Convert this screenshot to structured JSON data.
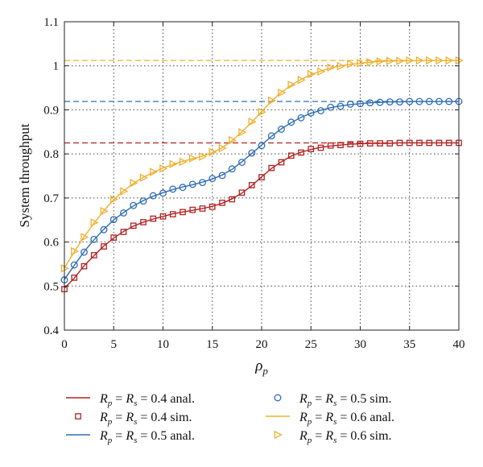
{
  "chart_data": {
    "type": "line",
    "title": "",
    "xlabel": "ρ",
    "xlabel_sub": "p",
    "ylabel": "System throughput",
    "xlim": [
      0,
      40
    ],
    "ylim": [
      0.4,
      1.1
    ],
    "x_ticks": [
      "0",
      "5",
      "10",
      "15",
      "20",
      "25",
      "30",
      "35",
      "40"
    ],
    "y_ticks": [
      "0.4",
      "0.5",
      "0.6",
      "0.7",
      "0.8",
      "0.9",
      "1",
      "1.1"
    ],
    "grid": true,
    "legend_position": "below",
    "x": [
      0,
      1,
      2,
      3,
      4,
      5,
      6,
      7,
      8,
      9,
      10,
      11,
      12,
      13,
      14,
      15,
      16,
      17,
      18,
      19,
      20,
      21,
      22,
      23,
      24,
      25,
      26,
      27,
      28,
      29,
      30,
      31,
      32,
      33,
      34,
      35,
      36,
      37,
      38,
      39,
      40
    ],
    "series": [
      {
        "name": "R_p = R_s = 0.4 anal.",
        "legend_text": "= 0.4 anal.",
        "color": "#b22222",
        "style": "line",
        "values": [
          0.495,
          0.518,
          0.546,
          0.569,
          0.591,
          0.609,
          0.624,
          0.636,
          0.645,
          0.652,
          0.658,
          0.664,
          0.668,
          0.672,
          0.676,
          0.681,
          0.688,
          0.698,
          0.711,
          0.728,
          0.748,
          0.767,
          0.782,
          0.795,
          0.804,
          0.81,
          0.815,
          0.818,
          0.82,
          0.822,
          0.823,
          0.824,
          0.824,
          0.824,
          0.825,
          0.825,
          0.825,
          0.825,
          0.825,
          0.825,
          0.825
        ]
      },
      {
        "name": "R_p = R_s = 0.4 sim.",
        "legend_text": "= 0.4 sim.",
        "color": "#b22222",
        "style": "marker-square",
        "values": [
          0.493,
          0.519,
          0.545,
          0.57,
          0.59,
          0.61,
          0.623,
          0.637,
          0.645,
          0.653,
          0.658,
          0.663,
          0.668,
          0.673,
          0.676,
          0.68,
          0.689,
          0.697,
          0.712,
          0.729,
          0.747,
          0.768,
          0.781,
          0.796,
          0.803,
          0.811,
          0.814,
          0.819,
          0.82,
          0.822,
          0.823,
          0.824,
          0.824,
          0.824,
          0.825,
          0.825,
          0.825,
          0.825,
          0.825,
          0.825,
          0.825
        ]
      },
      {
        "name": "R_p = R_s = 0.5 anal.",
        "legend_text": "= 0.5 anal.",
        "color": "#2e6db4",
        "style": "line",
        "values": [
          0.515,
          0.547,
          0.578,
          0.605,
          0.629,
          0.65,
          0.667,
          0.682,
          0.694,
          0.704,
          0.712,
          0.719,
          0.725,
          0.73,
          0.736,
          0.743,
          0.752,
          0.765,
          0.782,
          0.801,
          0.82,
          0.84,
          0.857,
          0.871,
          0.883,
          0.892,
          0.899,
          0.905,
          0.909,
          0.912,
          0.914,
          0.916,
          0.917,
          0.918,
          0.918,
          0.919,
          0.919,
          0.919,
          0.919,
          0.919,
          0.919
        ]
      },
      {
        "name": "R_p = R_s = 0.5 sim.",
        "legend_text": "= 0.5 sim.",
        "color": "#2e6db4",
        "style": "marker-circle",
        "values": [
          0.514,
          0.548,
          0.577,
          0.606,
          0.628,
          0.651,
          0.666,
          0.683,
          0.693,
          0.705,
          0.711,
          0.72,
          0.724,
          0.731,
          0.735,
          0.744,
          0.751,
          0.766,
          0.781,
          0.802,
          0.819,
          0.841,
          0.856,
          0.872,
          0.882,
          0.893,
          0.898,
          0.906,
          0.908,
          0.913,
          0.914,
          0.916,
          0.917,
          0.918,
          0.918,
          0.919,
          0.919,
          0.919,
          0.919,
          0.919,
          0.919
        ]
      },
      {
        "name": "R_p = R_s = 0.6 anal.",
        "legend_text": "= 0.6 anal.",
        "color": "#f0b030",
        "style": "line",
        "values": [
          0.541,
          0.578,
          0.612,
          0.643,
          0.671,
          0.696,
          0.716,
          0.733,
          0.747,
          0.758,
          0.768,
          0.776,
          0.783,
          0.789,
          0.795,
          0.803,
          0.814,
          0.83,
          0.85,
          0.872,
          0.896,
          0.92,
          0.94,
          0.956,
          0.969,
          0.98,
          0.988,
          0.995,
          1.0,
          1.003,
          1.006,
          1.008,
          1.01,
          1.011,
          1.011,
          1.012,
          1.012,
          1.012,
          1.012,
          1.012,
          1.012
        ]
      },
      {
        "name": "R_p = R_s = 0.6 sim.",
        "legend_text": "= 0.6 sim.",
        "color": "#f0b030",
        "style": "marker-triangle",
        "values": [
          0.54,
          0.579,
          0.611,
          0.644,
          0.67,
          0.697,
          0.715,
          0.734,
          0.746,
          0.759,
          0.767,
          0.777,
          0.782,
          0.79,
          0.794,
          0.804,
          0.813,
          0.831,
          0.849,
          0.873,
          0.895,
          0.921,
          0.939,
          0.957,
          0.968,
          0.981,
          0.987,
          0.996,
          0.999,
          1.004,
          1.006,
          1.008,
          1.01,
          1.011,
          1.011,
          1.012,
          1.012,
          1.012,
          1.012,
          1.012,
          1.012
        ]
      }
    ],
    "asymptotes": [
      {
        "value": 0.825,
        "color": "#b22222"
      },
      {
        "value": 0.919,
        "color": "#2e6db4"
      },
      {
        "value": 1.012,
        "color": "#f0b030"
      }
    ],
    "legend_prefix": {
      "r": "R",
      "sub_p": "p",
      "sub_s": "s",
      "eq1": "=",
      "eq2": ""
    }
  }
}
